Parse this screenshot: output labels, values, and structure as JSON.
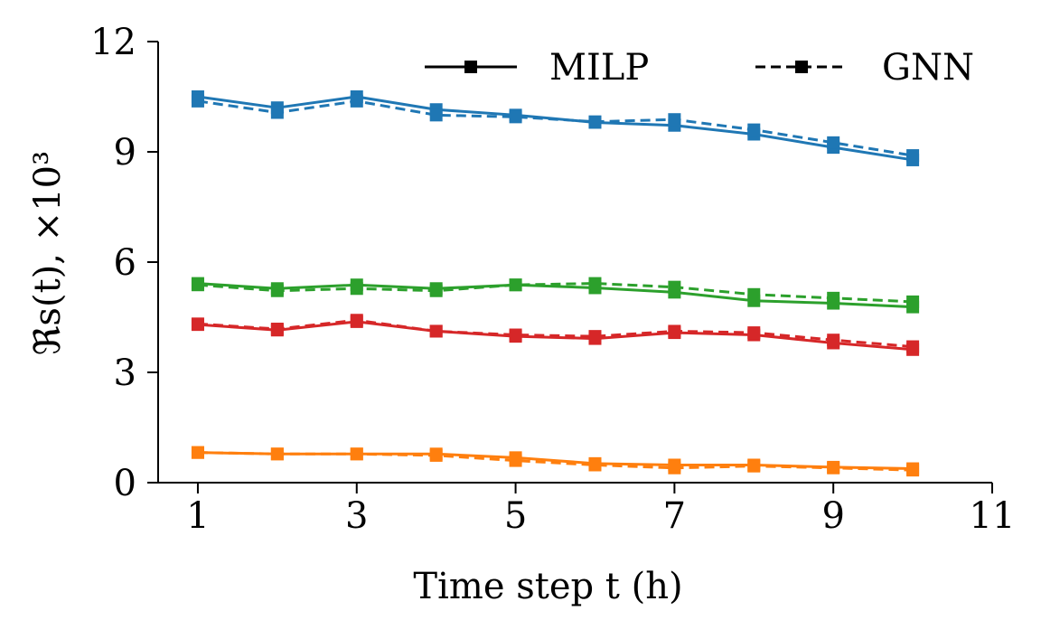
{
  "chart_data": {
    "type": "line",
    "title": "",
    "xlabel": "Time step t (h)",
    "ylabel": "ℜs(t), ×10³",
    "xlim": [
      0.5,
      11
    ],
    "ylim": [
      0,
      12
    ],
    "xticks": [
      1,
      3,
      5,
      7,
      9,
      11
    ],
    "yticks": [
      0,
      3,
      6,
      9,
      12
    ],
    "grid": false,
    "legend": {
      "placement": "top-right",
      "entries": [
        {
          "label": "MILP",
          "line_style": "solid",
          "marker": "square"
        },
        {
          "label": "GNN",
          "line_style": "dashed",
          "marker": "square"
        }
      ]
    },
    "x": [
      1,
      2,
      3,
      4,
      5,
      6,
      7,
      8,
      9,
      10
    ],
    "series": [
      {
        "method": "MILP",
        "color": "#1f77b4",
        "line_style": "solid",
        "values": [
          10.5,
          10.2,
          10.5,
          10.15,
          10.0,
          9.8,
          9.72,
          9.48,
          9.12,
          8.78
        ]
      },
      {
        "method": "GNN",
        "color": "#1f77b4",
        "line_style": "dashed",
        "values": [
          10.38,
          10.07,
          10.38,
          10.0,
          9.95,
          9.82,
          9.88,
          9.6,
          9.25,
          8.9
        ]
      },
      {
        "method": "MILP",
        "color": "#2ca02c",
        "line_style": "solid",
        "values": [
          5.42,
          5.28,
          5.38,
          5.28,
          5.38,
          5.3,
          5.18,
          4.95,
          4.88,
          4.78
        ]
      },
      {
        "method": "GNN",
        "color": "#2ca02c",
        "line_style": "dashed",
        "values": [
          5.38,
          5.22,
          5.28,
          5.22,
          5.38,
          5.42,
          5.32,
          5.12,
          5.02,
          4.92
        ]
      },
      {
        "method": "MILP",
        "color": "#d62728",
        "line_style": "solid",
        "values": [
          4.3,
          4.15,
          4.38,
          4.12,
          3.98,
          3.92,
          4.08,
          4.02,
          3.8,
          3.62
        ]
      },
      {
        "method": "GNN",
        "color": "#d62728",
        "line_style": "dashed",
        "values": [
          4.32,
          4.18,
          4.42,
          4.12,
          4.02,
          3.98,
          4.12,
          4.08,
          3.88,
          3.7
        ]
      },
      {
        "method": "MILP",
        "color": "#ff7f0e",
        "line_style": "solid",
        "values": [
          0.82,
          0.78,
          0.78,
          0.78,
          0.68,
          0.52,
          0.48,
          0.48,
          0.42,
          0.38
        ]
      },
      {
        "method": "GNN",
        "color": "#ff7f0e",
        "line_style": "dashed",
        "values": [
          0.82,
          0.78,
          0.78,
          0.74,
          0.6,
          0.48,
          0.4,
          0.45,
          0.4,
          0.34
        ]
      }
    ]
  }
}
